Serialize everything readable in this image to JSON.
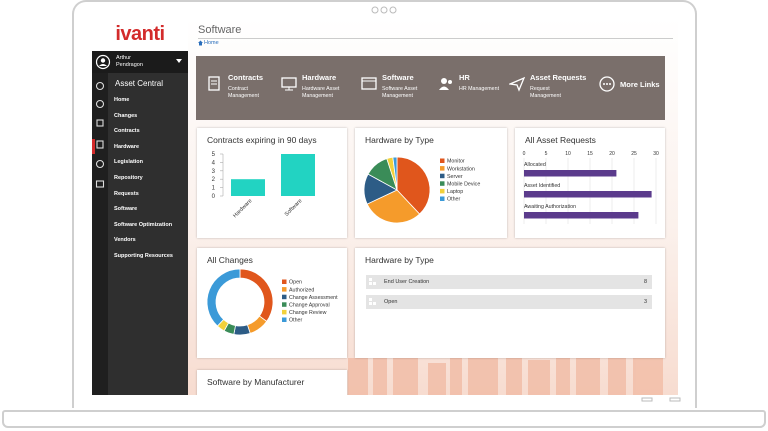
{
  "header": {
    "title": "Software",
    "breadcrumb": "Home"
  },
  "sidebar": {
    "logo": "ivanti",
    "user": "Arthur Pendragon",
    "section": "Asset Central",
    "menu": [
      "Home",
      "Changes",
      "Contracts",
      "Hardware",
      "Legislation",
      "Repository",
      "Requests",
      "Software",
      "Software Optimization",
      "Vendors",
      "Supporting Resources"
    ],
    "active_index": 3
  },
  "banner": {
    "items": [
      {
        "title": "Contracts",
        "subtitle": "Contract Management"
      },
      {
        "title": "Hardware",
        "subtitle": "Hardware Asset Management"
      },
      {
        "title": "Software",
        "subtitle": "Software Asset Management"
      },
      {
        "title": "HR",
        "subtitle": "HR Management"
      },
      {
        "title": "Asset Requests",
        "subtitle": "Request Management"
      },
      {
        "title": "More Links"
      }
    ]
  },
  "widgets": {
    "contracts": {
      "type": "bar",
      "title": "Contracts expiring in 90 days",
      "categories": [
        "Hardware",
        "Software"
      ],
      "values": [
        2,
        5
      ],
      "color": "#22d3c2",
      "ylim": [
        0,
        5
      ],
      "yticks": [
        0,
        1,
        2,
        3,
        4,
        5
      ]
    },
    "hardware_pie": {
      "type": "pie",
      "title": "Hardware by Type",
      "categories": [
        "Monitor",
        "Workstation",
        "Server",
        "Mobile Device",
        "Laptop",
        "Other"
      ],
      "values": [
        38,
        30,
        15,
        12,
        3,
        2
      ],
      "colors": [
        "#e0561c",
        "#f59b2b",
        "#2d5c86",
        "#3a8c58",
        "#f2d13b",
        "#3b9ad8"
      ]
    },
    "asset_requests": {
      "type": "hbar",
      "title": "All Asset Requests",
      "categories": [
        "Allocated",
        "Asset Identified",
        "Awaiting Authorization"
      ],
      "values": [
        21,
        29,
        26
      ],
      "color": "#5b3b8c",
      "xlim": [
        0,
        30
      ],
      "xticks": [
        0,
        5,
        10,
        15,
        20,
        25,
        30
      ],
      "grid": true
    },
    "changes": {
      "type": "donut",
      "title": "All Changes",
      "categories": [
        "Open",
        "Authorized",
        "Change Assessment",
        "Change Approval",
        "Change Review",
        "Other"
      ],
      "values": [
        35,
        10,
        8,
        5,
        4,
        38
      ],
      "colors": [
        "#e0561c",
        "#f59b2b",
        "#2d5c86",
        "#3a8c58",
        "#f2d13b",
        "#3b9ad8"
      ]
    },
    "hardware_list": {
      "title": "Hardware by Type",
      "rows": [
        {
          "label": "End User Creation",
          "count": 8
        },
        {
          "label": "Open",
          "count": 3
        }
      ]
    },
    "software_manufacturer": {
      "title": "Software by Manufacturer"
    }
  }
}
